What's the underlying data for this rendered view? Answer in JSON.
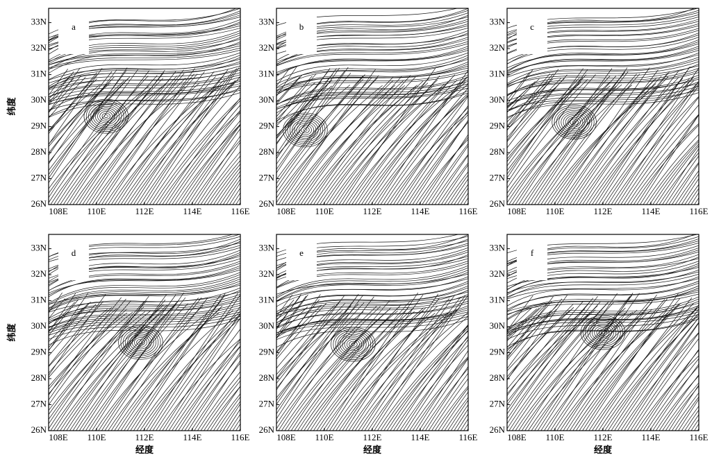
{
  "chart_data": [
    {
      "type": "streamline",
      "panel": "a",
      "xlim": [
        108,
        116
      ],
      "ylim": [
        26,
        33.55
      ],
      "xticks": [
        {
          "value": 108,
          "label": "108E"
        },
        {
          "value": 110,
          "label": "110E"
        },
        {
          "value": 112,
          "label": "112E"
        },
        {
          "value": 114,
          "label": "114E"
        },
        {
          "value": 116,
          "label": "116E"
        }
      ],
      "yticks": [
        {
          "value": 26,
          "label": "26N"
        },
        {
          "value": 27,
          "label": "27N"
        },
        {
          "value": 28,
          "label": "28N"
        },
        {
          "value": 29,
          "label": "29N"
        },
        {
          "value": 30,
          "label": "30N"
        },
        {
          "value": 31,
          "label": "31N"
        },
        {
          "value": 32,
          "label": "32N"
        },
        {
          "value": 33,
          "label": "33N"
        }
      ],
      "ylabel": "纬度"
    },
    {
      "type": "streamline",
      "panel": "b",
      "xlim": [
        108,
        116
      ],
      "ylim": [
        26,
        33.55
      ],
      "xticks": [
        {
          "value": 108,
          "label": "108E"
        },
        {
          "value": 110,
          "label": "110E"
        },
        {
          "value": 112,
          "label": "112E"
        },
        {
          "value": 114,
          "label": "114E"
        },
        {
          "value": 116,
          "label": "116E"
        }
      ],
      "yticks": [
        {
          "value": 26,
          "label": "26N"
        },
        {
          "value": 27,
          "label": "27N"
        },
        {
          "value": 28,
          "label": "28N"
        },
        {
          "value": 29,
          "label": "29N"
        },
        {
          "value": 30,
          "label": "30N"
        },
        {
          "value": 31,
          "label": "31N"
        },
        {
          "value": 32,
          "label": "32N"
        },
        {
          "value": 33,
          "label": "33N"
        }
      ]
    },
    {
      "type": "streamline",
      "panel": "c",
      "xlim": [
        108,
        116
      ],
      "ylim": [
        26,
        33.55
      ],
      "xticks": [
        {
          "value": 108,
          "label": "108E"
        },
        {
          "value": 110,
          "label": "110E"
        },
        {
          "value": 112,
          "label": "112E"
        },
        {
          "value": 114,
          "label": "114E"
        },
        {
          "value": 116,
          "label": "116E"
        }
      ],
      "yticks": [
        {
          "value": 26,
          "label": "26N"
        },
        {
          "value": 27,
          "label": "27N"
        },
        {
          "value": 28,
          "label": "28N"
        },
        {
          "value": 29,
          "label": "29N"
        },
        {
          "value": 30,
          "label": "30N"
        },
        {
          "value": 31,
          "label": "31N"
        },
        {
          "value": 32,
          "label": "32N"
        },
        {
          "value": 33,
          "label": "33N"
        }
      ]
    },
    {
      "type": "streamline",
      "panel": "d",
      "xlim": [
        108,
        116
      ],
      "ylim": [
        26,
        33.55
      ],
      "xticks": [
        {
          "value": 108,
          "label": "108E"
        },
        {
          "value": 110,
          "label": "110E"
        },
        {
          "value": 112,
          "label": "112E"
        },
        {
          "value": 114,
          "label": "114E"
        },
        {
          "value": 116,
          "label": "116E"
        }
      ],
      "yticks": [
        {
          "value": 26,
          "label": "26N"
        },
        {
          "value": 27,
          "label": "27N"
        },
        {
          "value": 28,
          "label": "28N"
        },
        {
          "value": 29,
          "label": "29N"
        },
        {
          "value": 30,
          "label": "30N"
        },
        {
          "value": 31,
          "label": "31N"
        },
        {
          "value": 32,
          "label": "32N"
        },
        {
          "value": 33,
          "label": "33N"
        }
      ],
      "xlabel": "经度",
      "ylabel": "纬度"
    },
    {
      "type": "streamline",
      "panel": "e",
      "xlim": [
        108,
        116
      ],
      "ylim": [
        26,
        33.55
      ],
      "xticks": [
        {
          "value": 108,
          "label": "108E"
        },
        {
          "value": 110,
          "label": "110E"
        },
        {
          "value": 112,
          "label": "112E"
        },
        {
          "value": 114,
          "label": "114E"
        },
        {
          "value": 116,
          "label": "116E"
        }
      ],
      "yticks": [
        {
          "value": 26,
          "label": "26N"
        },
        {
          "value": 27,
          "label": "27N"
        },
        {
          "value": 28,
          "label": "28N"
        },
        {
          "value": 29,
          "label": "29N"
        },
        {
          "value": 30,
          "label": "30N"
        },
        {
          "value": 31,
          "label": "31N"
        },
        {
          "value": 32,
          "label": "32N"
        },
        {
          "value": 33,
          "label": "33N"
        }
      ],
      "xlabel": "经度"
    },
    {
      "type": "streamline",
      "panel": "f",
      "xlim": [
        108,
        116
      ],
      "ylim": [
        26,
        33.55
      ],
      "xticks": [
        {
          "value": 108,
          "label": "108E"
        },
        {
          "value": 110,
          "label": "110E"
        },
        {
          "value": 112,
          "label": "112E"
        },
        {
          "value": 114,
          "label": "114E"
        },
        {
          "value": 116,
          "label": "116E"
        }
      ],
      "yticks": [
        {
          "value": 26,
          "label": "26N"
        },
        {
          "value": 27,
          "label": "27N"
        },
        {
          "value": 28,
          "label": "28N"
        },
        {
          "value": 29,
          "label": "29N"
        },
        {
          "value": 30,
          "label": "30N"
        },
        {
          "value": 31,
          "label": "31N"
        },
        {
          "value": 32,
          "label": "32N"
        },
        {
          "value": 33,
          "label": "33N"
        }
      ],
      "xlabel": "经度"
    }
  ]
}
